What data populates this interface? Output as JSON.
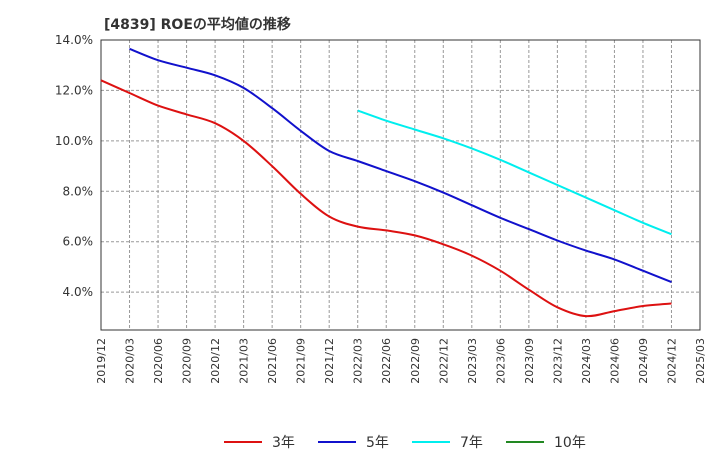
{
  "chart_data": {
    "type": "line",
    "title": "[4839]  ROEの平均値の推移",
    "xlabel": "",
    "ylabel": "",
    "x_ticks": [
      "2019/12",
      "2020/03",
      "2020/06",
      "2020/09",
      "2020/12",
      "2021/03",
      "2021/06",
      "2021/09",
      "2021/12",
      "2022/03",
      "2022/06",
      "2022/09",
      "2022/12",
      "2023/03",
      "2023/06",
      "2023/09",
      "2023/12",
      "2024/03",
      "2024/06",
      "2024/09",
      "2024/12",
      "2025/03"
    ],
    "y_ticks": [
      "4.0%",
      "6.0%",
      "8.0%",
      "10.0%",
      "12.0%",
      "14.0%"
    ],
    "y_tick_values": [
      4,
      6,
      8,
      10,
      12,
      14
    ],
    "ylim": [
      2.5,
      14.0
    ],
    "grid": true,
    "legend_position": "bottom",
    "series": [
      {
        "name": "3年",
        "color": "#dd1111",
        "start_index": 0,
        "values": [
          12.4,
          11.9,
          11.4,
          11.05,
          10.7,
          10.0,
          9.0,
          7.9,
          7.0,
          6.6,
          6.45,
          6.25,
          5.9,
          5.45,
          4.85,
          4.1,
          3.4,
          3.05,
          3.25,
          3.45,
          3.55
        ]
      },
      {
        "name": "5年",
        "color": "#1111cc",
        "start_index": 1,
        "values": [
          13.65,
          13.2,
          12.9,
          12.6,
          12.1,
          11.3,
          10.4,
          9.6,
          9.2,
          8.8,
          8.4,
          7.95,
          7.45,
          6.95,
          6.5,
          6.05,
          5.65,
          5.3,
          4.85,
          4.4
        ]
      },
      {
        "name": "7年",
        "color": "#00eeee",
        "start_index": 9,
        "values": [
          11.2,
          10.8,
          10.45,
          10.1,
          9.7,
          9.25,
          8.75,
          8.25,
          7.75,
          7.25,
          6.75,
          6.3
        ]
      },
      {
        "name": "10年",
        "color": "#228822",
        "start_index": 0,
        "values": []
      }
    ]
  }
}
